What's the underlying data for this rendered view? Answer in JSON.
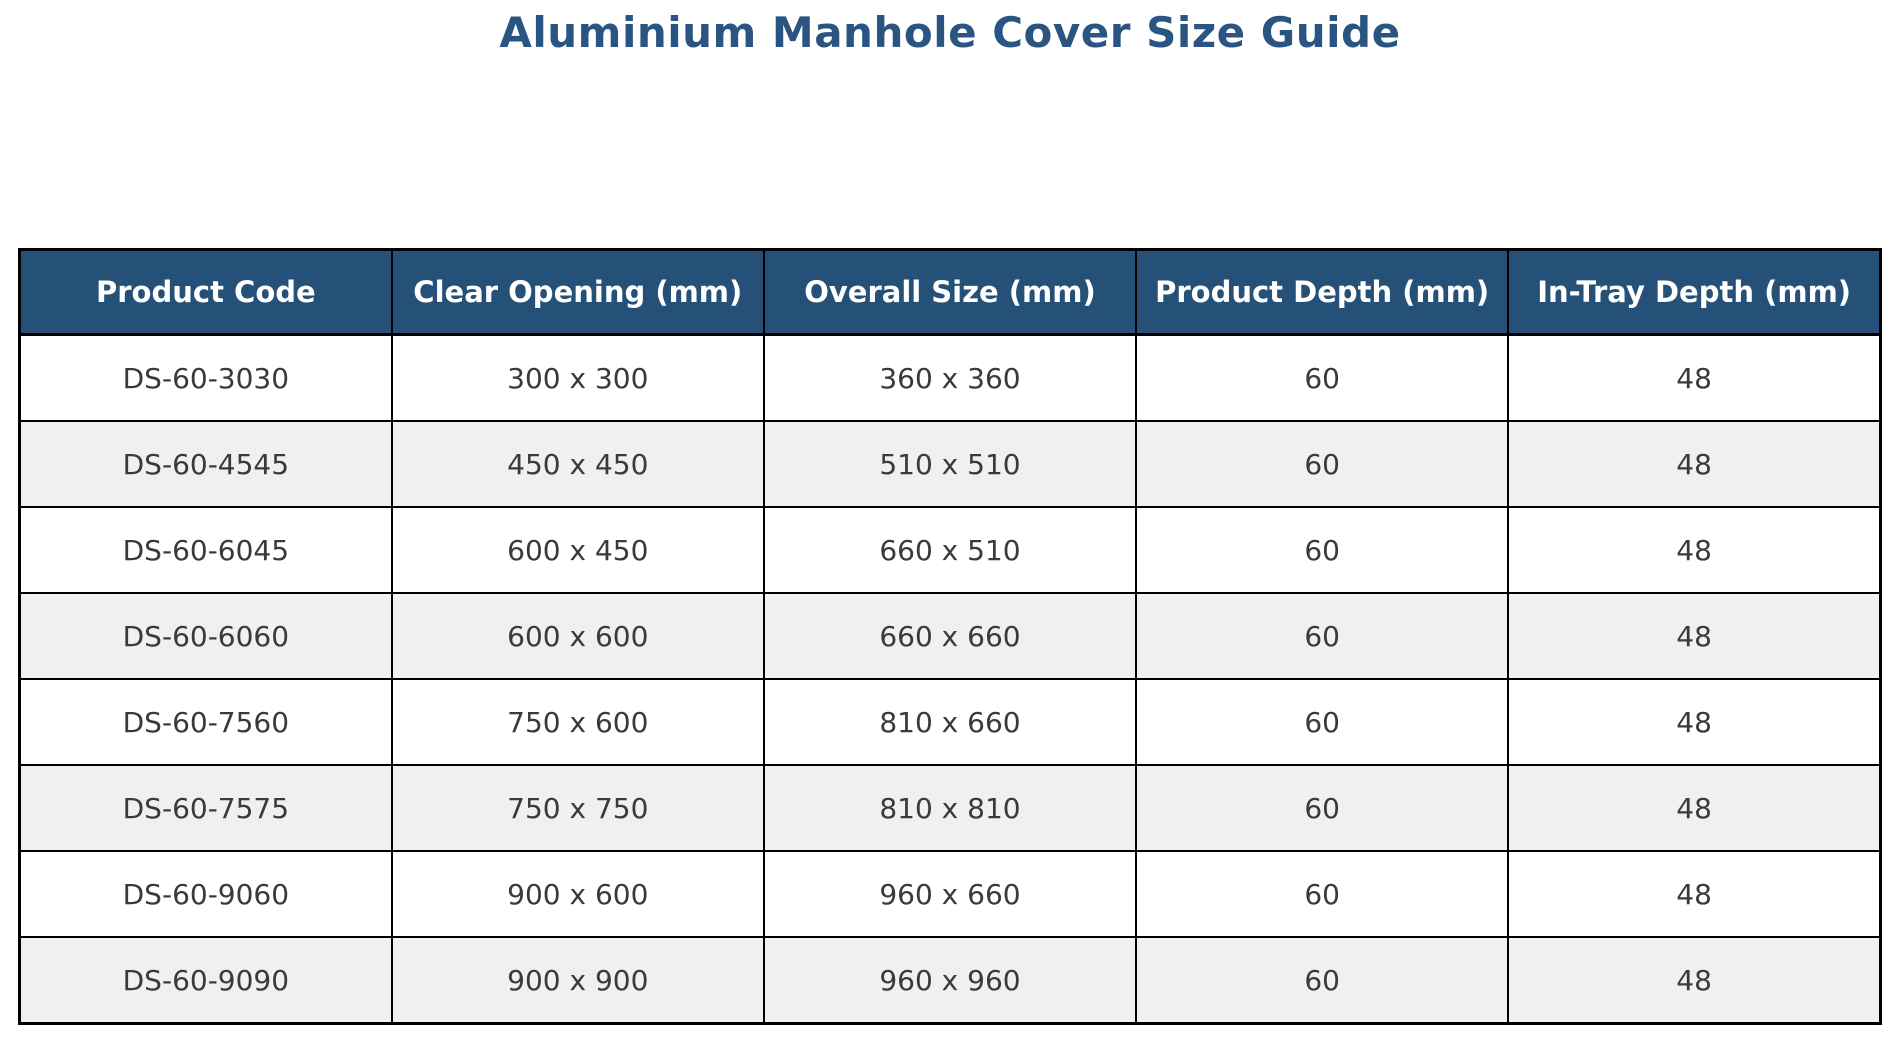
{
  "title": "Aluminium Manhole Cover Size Guide",
  "colors": {
    "header_bg": "#255078",
    "header_text": "#ffffff",
    "title_text": "#2a5582",
    "alt_row_bg": "#f0f0f0",
    "cell_text": "#3a3a3a",
    "border": "#000000"
  },
  "table": {
    "headers": [
      "Product Code",
      "Clear Opening (mm)",
      "Overall Size (mm)",
      "Product Depth (mm)",
      "In-Tray Depth (mm)"
    ],
    "rows": [
      [
        "DS-60-3030",
        "300 x 300",
        "360 x 360",
        "60",
        "48"
      ],
      [
        "DS-60-4545",
        "450 x 450",
        "510 x 510",
        "60",
        "48"
      ],
      [
        "DS-60-6045",
        "600 x 450",
        "660 x 510",
        "60",
        "48"
      ],
      [
        "DS-60-6060",
        "600 x 600",
        "660 x 660",
        "60",
        "48"
      ],
      [
        "DS-60-7560",
        "750 x 600",
        "810 x 660",
        "60",
        "48"
      ],
      [
        "DS-60-7575",
        "750 x 750",
        "810 x 810",
        "60",
        "48"
      ],
      [
        "DS-60-9060",
        "900 x 600",
        "960 x 660",
        "60",
        "48"
      ],
      [
        "DS-60-9090",
        "900 x 900",
        "960 x 960",
        "60",
        "48"
      ]
    ]
  },
  "chart_data": {
    "type": "table",
    "title": "Aluminium Manhole Cover Size Guide",
    "columns": [
      "Product Code",
      "Clear Opening (mm)",
      "Overall Size (mm)",
      "Product Depth (mm)",
      "In-Tray Depth (mm)"
    ],
    "rows": [
      [
        "DS-60-3030",
        "300 x 300",
        "360 x 360",
        60,
        48
      ],
      [
        "DS-60-4545",
        "450 x 450",
        "510 x 510",
        60,
        48
      ],
      [
        "DS-60-6045",
        "600 x 450",
        "660 x 510",
        60,
        48
      ],
      [
        "DS-60-6060",
        "600 x 600",
        "660 x 660",
        60,
        48
      ],
      [
        "DS-60-7560",
        "750 x 600",
        "810 x 660",
        60,
        48
      ],
      [
        "DS-60-7575",
        "750 x 750",
        "810 x 810",
        60,
        48
      ],
      [
        "DS-60-9060",
        "900 x 600",
        "960 x 660",
        60,
        48
      ],
      [
        "DS-60-9090",
        "900 x 900",
        "960 x 960",
        60,
        48
      ]
    ],
    "layout": {
      "header_style": "dark-blue background, white bold text",
      "row_striping": "alternating white / light gray starting with white",
      "grid": "black borders on all cells",
      "alignment": "all cells centered"
    }
  }
}
